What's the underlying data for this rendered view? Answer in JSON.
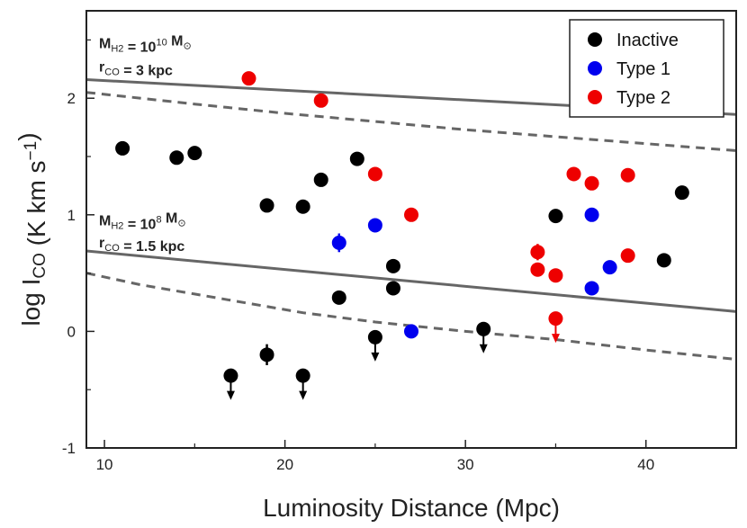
{
  "chart_data": {
    "type": "scatter",
    "xlabel": "Luminosity Distance (Mpc)",
    "ylabel": "log I",
    "ylabel_sub": "CO",
    "ylabel_unit_pre": " (K km s",
    "ylabel_unit_sup": "−1",
    "ylabel_unit_post": ")",
    "xlim": [
      9,
      45
    ],
    "ylim": [
      -1,
      2.75
    ],
    "xticks": [
      10,
      20,
      30,
      40
    ],
    "yticks": [
      -1,
      0,
      1,
      2
    ],
    "legend_position": "top-right",
    "series": [
      {
        "name": "Inactive",
        "color": "#000000",
        "points": [
          {
            "x": 11,
            "y": 1.57
          },
          {
            "x": 14,
            "y": 1.49
          },
          {
            "x": 15,
            "y": 1.53
          },
          {
            "x": 19,
            "y": 1.08
          },
          {
            "x": 21,
            "y": 1.07
          },
          {
            "x": 22,
            "y": 1.3
          },
          {
            "x": 24,
            "y": 1.48
          },
          {
            "x": 23,
            "y": 0.29
          },
          {
            "x": 26,
            "y": 0.56
          },
          {
            "x": 26,
            "y": 0.37
          },
          {
            "x": 35,
            "y": 0.99
          },
          {
            "x": 41,
            "y": 0.61
          },
          {
            "x": 42,
            "y": 1.19
          },
          {
            "x": 19,
            "y": -0.2,
            "err": 0.09
          },
          {
            "x": 17,
            "y": -0.38,
            "upper": true
          },
          {
            "x": 21,
            "y": -0.38,
            "upper": true
          },
          {
            "x": 25,
            "y": -0.05,
            "upper": true
          },
          {
            "x": 31,
            "y": 0.02,
            "upper": true
          }
        ]
      },
      {
        "name": "Type 1",
        "color": "#0000ee",
        "points": [
          {
            "x": 23,
            "y": 0.76,
            "err": 0.08
          },
          {
            "x": 25,
            "y": 0.91
          },
          {
            "x": 27,
            "y": 0.0
          },
          {
            "x": 37,
            "y": 1.0
          },
          {
            "x": 37,
            "y": 0.37
          },
          {
            "x": 38,
            "y": 0.55
          }
        ]
      },
      {
        "name": "Type 2",
        "color": "#ee0000",
        "points": [
          {
            "x": 18,
            "y": 2.17
          },
          {
            "x": 22,
            "y": 1.98
          },
          {
            "x": 25,
            "y": 1.35
          },
          {
            "x": 27,
            "y": 1.0
          },
          {
            "x": 34,
            "y": 0.68,
            "err": 0.07
          },
          {
            "x": 34,
            "y": 0.53
          },
          {
            "x": 35,
            "y": 0.48
          },
          {
            "x": 36,
            "y": 1.35
          },
          {
            "x": 37,
            "y": 1.27
          },
          {
            "x": 39,
            "y": 1.34
          },
          {
            "x": 39,
            "y": 0.65
          },
          {
            "x": 35,
            "y": 0.11,
            "upper": true
          }
        ]
      }
    ],
    "reference_lines": [
      {
        "style": "solid",
        "color": "#666666",
        "points": [
          [
            9,
            2.16
          ],
          [
            45,
            1.86
          ]
        ]
      },
      {
        "style": "dashed",
        "color": "#666666",
        "points": [
          [
            9,
            2.05
          ],
          [
            15,
            1.95
          ],
          [
            20,
            1.87
          ],
          [
            25,
            1.8
          ],
          [
            30,
            1.73
          ],
          [
            35,
            1.67
          ],
          [
            40,
            1.61
          ],
          [
            45,
            1.55
          ]
        ]
      },
      {
        "style": "solid",
        "color": "#666666",
        "points": [
          [
            9,
            0.69
          ],
          [
            45,
            0.17
          ]
        ]
      },
      {
        "style": "dashed",
        "color": "#666666",
        "points": [
          [
            9,
            0.5
          ],
          [
            12,
            0.4
          ],
          [
            15,
            0.32
          ],
          [
            18,
            0.24
          ],
          [
            21,
            0.16
          ],
          [
            25,
            0.08
          ],
          [
            30,
            0.0
          ],
          [
            35,
            -0.07
          ],
          [
            40,
            -0.16
          ],
          [
            45,
            -0.24
          ]
        ]
      }
    ],
    "annotations": [
      {
        "x": 9.7,
        "y": 2.43,
        "parts": [
          {
            "t": "M"
          },
          {
            "t": "H2",
            "sub": true
          },
          {
            "t": " = 10"
          },
          {
            "t": "10",
            "sup": true
          },
          {
            "t": " M"
          },
          {
            "t": "⊙",
            "sub": true
          }
        ]
      },
      {
        "x": 9.7,
        "y": 2.23,
        "parts": [
          {
            "t": "r"
          },
          {
            "t": "CO",
            "sub": true
          },
          {
            "t": " = 3 kpc"
          }
        ]
      },
      {
        "x": 9.7,
        "y": 0.91,
        "parts": [
          {
            "t": "M"
          },
          {
            "t": "H2",
            "sub": true
          },
          {
            "t": " = 10"
          },
          {
            "t": "8",
            "sup": true
          },
          {
            "t": " M"
          },
          {
            "t": "⊙",
            "sub": true
          }
        ]
      },
      {
        "x": 9.7,
        "y": 0.72,
        "parts": [
          {
            "t": "r"
          },
          {
            "t": "CO",
            "sub": true
          },
          {
            "t": " = 1.5 kpc"
          }
        ]
      }
    ]
  }
}
